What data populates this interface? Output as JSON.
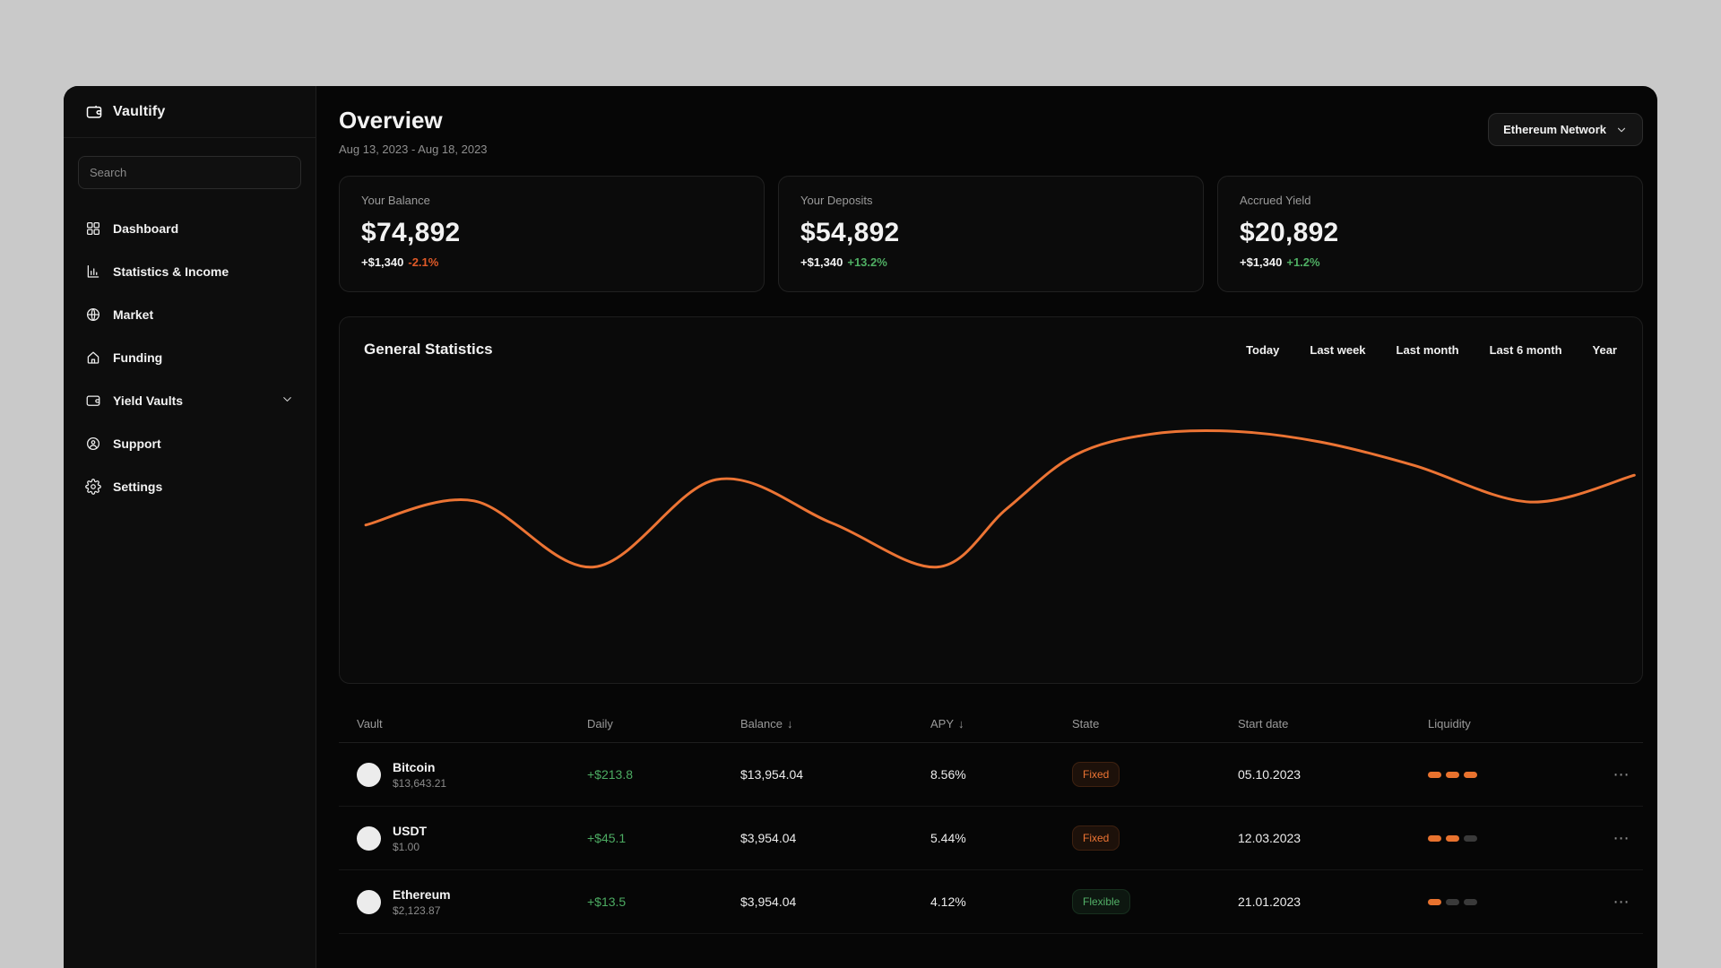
{
  "app": {
    "name": "Vaultify"
  },
  "colors": {
    "accent_orange": "#EC7434",
    "positive_green": "#4FAE63",
    "negative_orange": "#E05A28",
    "page_background": "#C9C9C9"
  },
  "sidebar": {
    "search_placeholder": "Search",
    "items": [
      {
        "label": "Dashboard",
        "icon": "dashboard"
      },
      {
        "label": "Statistics & Income",
        "icon": "bar-chart"
      },
      {
        "label": "Market",
        "icon": "globe"
      },
      {
        "label": "Funding",
        "icon": "home"
      },
      {
        "label": "Yield Vaults",
        "icon": "wallet",
        "chevron": true
      },
      {
        "label": "Support",
        "icon": "support"
      },
      {
        "label": "Settings",
        "icon": "gear"
      }
    ]
  },
  "header": {
    "title": "Overview",
    "date_range": "Aug 13, 2023 - Aug 18, 2023",
    "network_selector": "Ethereum Network"
  },
  "stat_cards": [
    {
      "label": "Your Balance",
      "value": "$74,892",
      "delta": "+$1,340",
      "percent": "-2.1%",
      "trend": "down"
    },
    {
      "label": "Your Deposits",
      "value": "$54,892",
      "delta": "+$1,340",
      "percent": "+13.2%",
      "trend": "up"
    },
    {
      "label": "Accrued Yield",
      "value": "$20,892",
      "delta": "+$1,340",
      "percent": "+1.2%",
      "trend": "up"
    }
  ],
  "statistics_panel": {
    "title": "General Statistics",
    "filters": [
      "Today",
      "Last week",
      "Last month",
      "Last 6 month",
      "Year"
    ]
  },
  "chart_data": {
    "type": "line",
    "title": "General Statistics",
    "line_color": "#EC7434",
    "smooth": true,
    "axes_hidden": true,
    "grid": false,
    "legend": "none",
    "points_pct": [
      [
        2.0,
        43.2
      ],
      [
        10.3,
        49.8
      ],
      [
        19.5,
        31.7
      ],
      [
        28.9,
        55.6
      ],
      [
        37.8,
        43.7
      ],
      [
        45.9,
        31.7
      ],
      [
        51.2,
        47.6
      ],
      [
        56.4,
        62.2
      ],
      [
        62.2,
        68.0
      ],
      [
        68.7,
        68.8
      ],
      [
        75.3,
        65.9
      ],
      [
        82.5,
        59.5
      ],
      [
        91.4,
        49.5
      ],
      [
        99.4,
        56.8
      ]
    ]
  },
  "vault_table": {
    "columns": [
      {
        "label": "Vault"
      },
      {
        "label": "Daily"
      },
      {
        "label": "Balance",
        "sort_icon": "↓"
      },
      {
        "label": "APY",
        "sort_icon": "↓"
      },
      {
        "label": "State"
      },
      {
        "label": "Start date"
      },
      {
        "label": "Liquidity"
      },
      {
        "label": ""
      }
    ],
    "menu_icon": "⋯",
    "rows": [
      {
        "name": "Bitcoin",
        "price": "$13,643.21",
        "daily": "+$213.8",
        "balance": "$13,954.04",
        "apy": "8.56%",
        "state": "Fixed",
        "state_type": "fixed",
        "start_date": "05.10.2023",
        "liquidity": 3
      },
      {
        "name": "USDT",
        "price": "$1.00",
        "daily": "+$45.1",
        "balance": "$3,954.04",
        "apy": "5.44%",
        "state": "Fixed",
        "state_type": "fixed",
        "start_date": "12.03.2023",
        "liquidity": 2
      },
      {
        "name": "Ethereum",
        "price": "$2,123.87",
        "daily": "+$13.5",
        "balance": "$3,954.04",
        "apy": "4.12%",
        "state": "Flexible",
        "state_type": "flexible",
        "start_date": "21.01.2023",
        "liquidity": 1
      }
    ]
  }
}
